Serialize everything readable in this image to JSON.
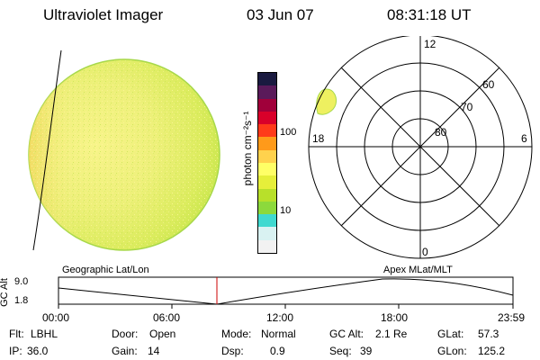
{
  "header": {
    "instrument": "Ultraviolet Imager",
    "date": "03 Jun 07",
    "time": "08:31:18 UT"
  },
  "colorbar": {
    "unit_label": "photon cm⁻²s⁻¹",
    "tick_100": "100",
    "tick_10": "10",
    "colors": [
      "#f2f2f2",
      "#d9f2f2",
      "#40d9d0",
      "#8cd93c",
      "#b8e02a",
      "#e6ef3a",
      "#ffff66",
      "#ffd24d",
      "#ff9a1a",
      "#ff3a1a",
      "#d9002a",
      "#a0003a",
      "#5a1a5a",
      "#1a1a40"
    ]
  },
  "polar_plot": {
    "label_12": "12",
    "label_6": "6",
    "label_18": "18",
    "label_0": "0",
    "lat_60": "60",
    "lat_70": "70",
    "lat_80": "80"
  },
  "timeline": {
    "left_title": "Geographic Lat/Lon",
    "right_title": "Apex MLat/MLT",
    "axis_label": "GC Alt",
    "y_max": "9.0",
    "y_min": "1.8",
    "ticks": [
      "00:00",
      "06:00",
      "12:00",
      "18:00",
      "23:59"
    ],
    "current_marker_color": "#cc0000"
  },
  "info": {
    "flt_label": "Flt:",
    "flt_value": "LBHL",
    "ip_label": "IP:",
    "ip_value": "36.0",
    "door_label": "Door:",
    "door_value": "Open",
    "gain_label": "Gain:",
    "gain_value": "14",
    "mode_label": "Mode:",
    "mode_value": "Normal",
    "dsp_label": "Dsp:",
    "dsp_value": "0.9",
    "gcalt_label": "GC Alt:",
    "gcalt_value": "2.1 Re",
    "seq_label": "Seq:",
    "seq_value": "39",
    "glat_label": "GLat:",
    "glat_value": "57.3",
    "glon_label": "GLon:",
    "glon_value": "125.2"
  }
}
